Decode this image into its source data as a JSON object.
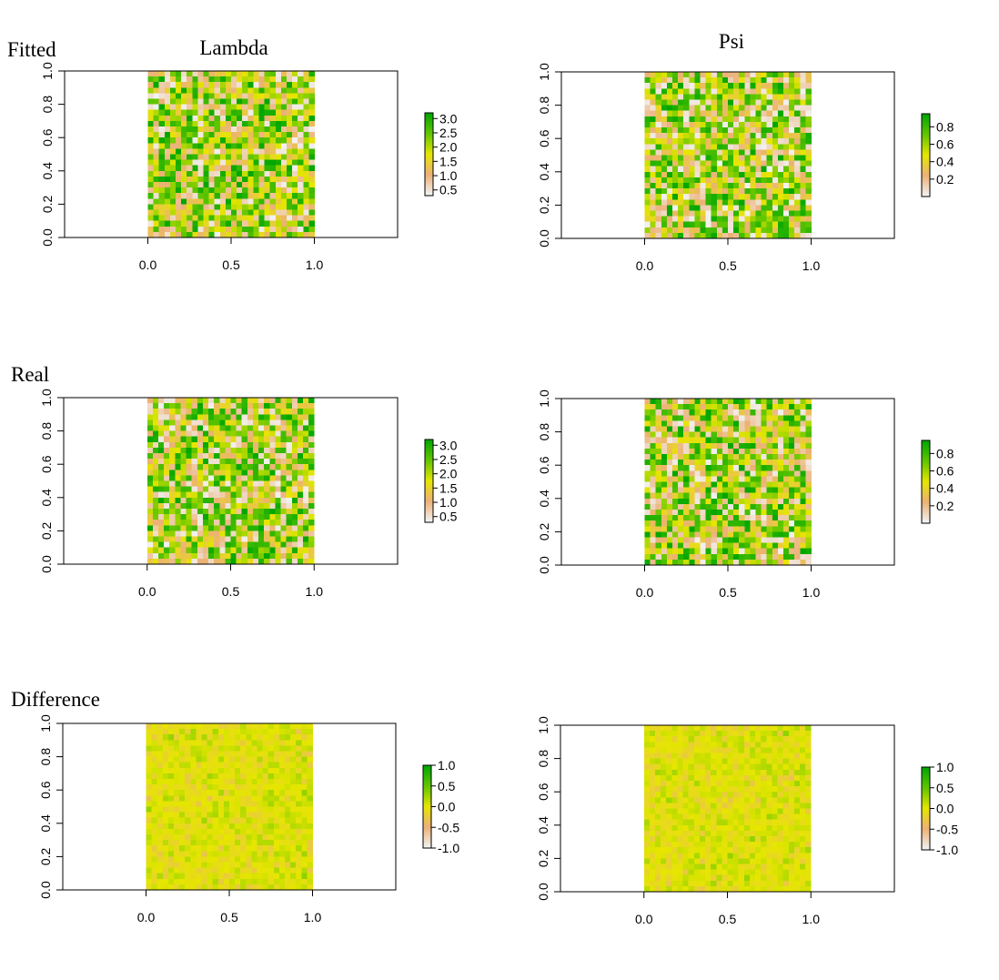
{
  "figure": {
    "row_labels": [
      "Fitted",
      "Real",
      "Difference"
    ],
    "column_titles": [
      "Lambda",
      "Psi"
    ]
  },
  "palette": {
    "terrain_stops": [
      "#f2f2f2",
      "#ecb176",
      "#e6e600",
      "#63c600",
      "#00a600"
    ]
  },
  "chart_data": [
    {
      "type": "heatmap",
      "id": "fitted-lambda",
      "row": "Fitted",
      "title": "Lambda",
      "grid": [
        30,
        30
      ],
      "seed": 11,
      "x_ticks": [
        "0.0",
        "0.5",
        "1.0"
      ],
      "y_ticks": [
        "0.0",
        "0.2",
        "0.4",
        "0.6",
        "0.8",
        "1.0"
      ],
      "xlim": [
        -0.5,
        1.5
      ],
      "ylim": [
        0,
        1
      ],
      "value_range": [
        0.3,
        3.2
      ],
      "legend_ticks": [
        "3.0",
        "2.5",
        "2.0",
        "1.5",
        "1.0",
        "0.5"
      ]
    },
    {
      "type": "heatmap",
      "id": "fitted-psi",
      "row": "Fitted",
      "title": "Psi",
      "grid": [
        30,
        30
      ],
      "seed": 23,
      "x_ticks": [
        "0.0",
        "0.5",
        "1.0"
      ],
      "y_ticks": [
        "0.0",
        "0.2",
        "0.4",
        "0.6",
        "0.8",
        "1.0"
      ],
      "xlim": [
        -0.5,
        1.5
      ],
      "ylim": [
        0,
        1
      ],
      "value_range": [
        0.0,
        0.95
      ],
      "legend_ticks": [
        "0.8",
        "0.6",
        "0.4",
        "0.2"
      ]
    },
    {
      "type": "heatmap",
      "id": "real-lambda",
      "row": "Real",
      "title": "",
      "grid": [
        30,
        30
      ],
      "seed": 37,
      "x_ticks": [
        "0.0",
        "0.5",
        "1.0"
      ],
      "y_ticks": [
        "0.0",
        "0.2",
        "0.4",
        "0.6",
        "0.8",
        "1.0"
      ],
      "xlim": [
        -0.5,
        1.5
      ],
      "ylim": [
        0,
        1
      ],
      "value_range": [
        0.3,
        3.2
      ],
      "legend_ticks": [
        "3.0",
        "2.5",
        "2.0",
        "1.5",
        "1.0",
        "0.5"
      ]
    },
    {
      "type": "heatmap",
      "id": "real-psi",
      "row": "Real",
      "title": "",
      "grid": [
        30,
        30
      ],
      "seed": 41,
      "x_ticks": [
        "0.0",
        "0.5",
        "1.0"
      ],
      "y_ticks": [
        "0.0",
        "0.2",
        "0.4",
        "0.6",
        "0.8",
        "1.0"
      ],
      "xlim": [
        -0.5,
        1.5
      ],
      "ylim": [
        0,
        1
      ],
      "value_range": [
        0.0,
        0.95
      ],
      "legend_ticks": [
        "0.8",
        "0.6",
        "0.4",
        "0.2"
      ]
    },
    {
      "type": "heatmap",
      "id": "difference-lambda",
      "row": "Difference",
      "title": "",
      "grid": [
        30,
        30
      ],
      "seed": 53,
      "x_ticks": [
        "0.0",
        "0.5",
        "1.0"
      ],
      "y_ticks": [
        "0.0",
        "0.2",
        "0.4",
        "0.6",
        "0.8",
        "1.0"
      ],
      "xlim": [
        -0.5,
        1.5
      ],
      "ylim": [
        0,
        1
      ],
      "value_range": [
        -1.0,
        1.0
      ],
      "legend_ticks": [
        "1.0",
        "0.5",
        "0.0",
        "-0.5",
        "-1.0"
      ]
    },
    {
      "type": "heatmap",
      "id": "difference-psi",
      "row": "Difference",
      "title": "",
      "grid": [
        30,
        30
      ],
      "seed": 67,
      "x_ticks": [
        "0.0",
        "0.5",
        "1.0"
      ],
      "y_ticks": [
        "0.0",
        "0.2",
        "0.4",
        "0.6",
        "0.8",
        "1.0"
      ],
      "xlim": [
        -0.5,
        1.5
      ],
      "ylim": [
        0,
        1
      ],
      "value_range": [
        -1.0,
        1.0
      ],
      "legend_ticks": [
        "1.0",
        "0.5",
        "0.0",
        "-0.5",
        "-1.0"
      ]
    }
  ]
}
